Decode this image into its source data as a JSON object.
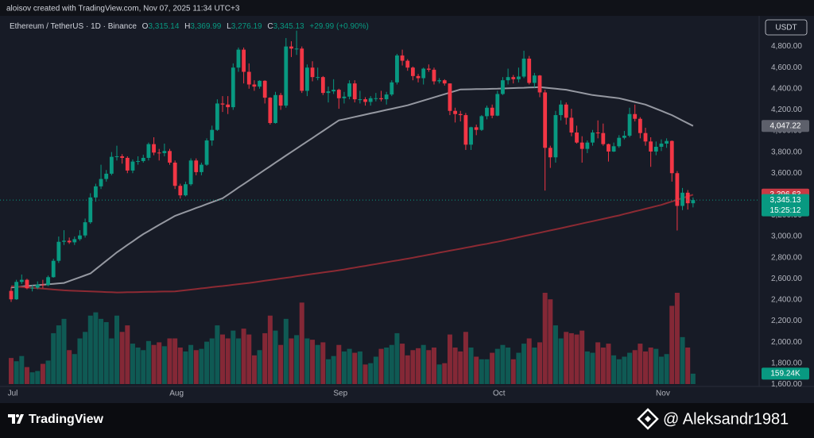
{
  "chart_data": {
    "type": "candlestick",
    "credit": "aloisov created with TradingView.com, Nov 07, 2025 11:34 UTC+3",
    "symbol": "Ethereum / TetherUS · 1D · Binance",
    "currency": "USDT",
    "quote": {
      "labels": [
        "O",
        "H",
        "L",
        "C"
      ],
      "values": [
        3315.14,
        3369.99,
        3276.19,
        3345.13
      ],
      "value_labels": [
        "3,315.14",
        "3,369.99",
        "3,276.19",
        "3,345.13"
      ],
      "change": "+29.99 (+0.90%)"
    },
    "countdown": "15:25:12",
    "footer_brand": "TradingView",
    "watermark": "@ Aleksandr1981",
    "up_color": "#089981",
    "down_color": "#f23645",
    "grid": false,
    "ylim": [
      1580,
      5090
    ],
    "yticks": [
      {
        "value": 1600,
        "label": "1,600.00"
      },
      {
        "value": 1800,
        "label": "1,800.00"
      },
      {
        "value": 2000,
        "label": "2,000.00"
      },
      {
        "value": 2200,
        "label": "2,200.00"
      },
      {
        "value": 2400,
        "label": "2,400.00"
      },
      {
        "value": 2600,
        "label": "2,600.00"
      },
      {
        "value": 2800,
        "label": "2,800.00"
      },
      {
        "value": 3000,
        "label": "3,000.00"
      },
      {
        "value": 3200,
        "label": "3,200.00"
      },
      {
        "value": 3400,
        "label": "3,400.00"
      },
      {
        "value": 3600,
        "label": "3,600.00"
      },
      {
        "value": 3800,
        "label": "3,800.00"
      },
      {
        "value": 4000,
        "label": "4,000.00"
      },
      {
        "value": 4200,
        "label": "4,200.00"
      },
      {
        "value": 4400,
        "label": "4,400.00"
      },
      {
        "value": 4600,
        "label": "4,600.00"
      },
      {
        "value": 4800,
        "label": "4,800.00"
      }
    ],
    "categories": [
      "Jul",
      null,
      null,
      null,
      null,
      null,
      null,
      null,
      null,
      null,
      null,
      null,
      null,
      null,
      null,
      null,
      null,
      null,
      null,
      null,
      null,
      null,
      null,
      null,
      null,
      null,
      null,
      null,
      null,
      null,
      null,
      "Aug",
      null,
      null,
      null,
      null,
      null,
      null,
      null,
      null,
      null,
      null,
      null,
      null,
      null,
      null,
      null,
      null,
      null,
      null,
      null,
      null,
      null,
      null,
      null,
      null,
      null,
      null,
      null,
      null,
      null,
      null,
      "Sep",
      null,
      null,
      null,
      null,
      null,
      null,
      null,
      null,
      null,
      null,
      null,
      null,
      null,
      null,
      null,
      null,
      null,
      null,
      null,
      null,
      null,
      null,
      null,
      null,
      null,
      null,
      null,
      null,
      null,
      "Oct",
      null,
      null,
      null,
      null,
      null,
      null,
      null,
      null,
      null,
      null,
      null,
      null,
      null,
      null,
      null,
      null,
      null,
      null,
      null,
      null,
      null,
      null,
      null,
      null,
      null,
      null,
      null,
      null,
      null,
      null,
      "Nov",
      null,
      null,
      null,
      null,
      null,
      null
    ],
    "open": [
      2485,
      2405,
      2570,
      2590,
      2510,
      2515,
      2545,
      2540,
      2615,
      2770,
      2950,
      2960,
      2945,
      2975,
      3010,
      3135,
      3370,
      3475,
      3545,
      3595,
      3755,
      3760,
      3745,
      3625,
      3710,
      3715,
      3745,
      3875,
      3795,
      3790,
      3810,
      3700,
      3480,
      3390,
      3495,
      3720,
      3610,
      3680,
      3910,
      4010,
      4260,
      4250,
      4225,
      4600,
      4770,
      4560,
      4440,
      4420,
      4475,
      4315,
      4075,
      4340,
      4240,
      4800,
      4780,
      4780,
      4380,
      4600,
      4510,
      4510,
      4360,
      4375,
      4390,
      4310,
      4325,
      4450,
      4300,
      4300,
      4275,
      4310,
      4310,
      4300,
      4345,
      4460,
      4715,
      4665,
      4600,
      4520,
      4500,
      4590,
      4580,
      4470,
      4480,
      4450,
      4190,
      4160,
      4150,
      3870,
      4035,
      4010,
      4140,
      4220,
      4145,
      4350,
      4480,
      4510,
      4490,
      4515,
      4685,
      4455,
      4525,
      4365,
      3840,
      3750,
      4150,
      4250,
      4125,
      3985,
      3890,
      3830,
      3890,
      3985,
      3980,
      3875,
      3805,
      3855,
      3935,
      3955,
      4160,
      4115,
      3980,
      3900,
      3805,
      3850,
      3880,
      3905,
      3600,
      3290,
      3415,
      3315.14
    ],
    "high": [
      2520,
      2590,
      2640,
      2600,
      2540,
      2575,
      2590,
      2630,
      2790,
      3000,
      3060,
      2990,
      3000,
      3060,
      3170,
      3410,
      3500,
      3680,
      3630,
      3800,
      3860,
      3780,
      3760,
      3730,
      3760,
      3775,
      3890,
      3940,
      3830,
      3880,
      3830,
      3720,
      3500,
      3520,
      3740,
      3740,
      3700,
      3930,
      4050,
      4300,
      4330,
      4330,
      4640,
      4790,
      4790,
      4640,
      4480,
      4480,
      4480,
      4320,
      4370,
      4360,
      4880,
      4850,
      4950,
      4800,
      4630,
      4660,
      4600,
      4520,
      4420,
      4490,
      4400,
      4370,
      4480,
      4480,
      4380,
      4320,
      4330,
      4360,
      4380,
      4370,
      4480,
      4730,
      4770,
      4680,
      4610,
      4540,
      4600,
      4630,
      4600,
      4500,
      4490,
      4450,
      4220,
      4190,
      4170,
      4040,
      4060,
      4150,
      4240,
      4250,
      4380,
      4510,
      4590,
      4530,
      4600,
      4760,
      4710,
      4550,
      4530,
      4390,
      3860,
      4190,
      4290,
      4270,
      4210,
      4050,
      3950,
      3910,
      4010,
      4100,
      4070,
      3880,
      3890,
      3960,
      4000,
      4220,
      4250,
      4130,
      4030,
      3940,
      3900,
      3920,
      3930,
      3910,
      3620,
      3460,
      3440,
      3369.99
    ],
    "low": [
      2380,
      2400,
      2550,
      2500,
      2480,
      2500,
      2510,
      2530,
      2610,
      2750,
      2920,
      2930,
      2920,
      2960,
      2990,
      3120,
      3330,
      3450,
      3520,
      3580,
      3720,
      3690,
      3600,
      3600,
      3680,
      3700,
      3720,
      3770,
      3720,
      3760,
      3680,
      3450,
      3360,
      3380,
      3480,
      3580,
      3580,
      3670,
      3860,
      4000,
      4180,
      4160,
      4200,
      4560,
      4450,
      4400,
      4380,
      4400,
      4260,
      4060,
      4070,
      4200,
      4220,
      4700,
      4720,
      4360,
      4330,
      4470,
      4480,
      4340,
      4270,
      4350,
      4210,
      4260,
      4300,
      4270,
      4260,
      4240,
      4240,
      4280,
      4280,
      4250,
      4330,
      4440,
      4620,
      4570,
      4480,
      4460,
      4440,
      4560,
      4440,
      4450,
      4430,
      4150,
      4080,
      4090,
      3820,
      3820,
      3960,
      4000,
      4110,
      4120,
      4140,
      4340,
      4440,
      4450,
      4460,
      4500,
      4440,
      4410,
      4320,
      3435,
      3650,
      3700,
      4100,
      4060,
      3950,
      3880,
      3700,
      3790,
      3860,
      3930,
      3860,
      3710,
      3800,
      3840,
      3920,
      3940,
      4090,
      3930,
      3860,
      3660,
      3770,
      3810,
      3840,
      3520,
      3057,
      3250,
      3255,
      3276.19
    ],
    "close": [
      2405,
      2570,
      2590,
      2510,
      2515,
      2545,
      2540,
      2615,
      2770,
      2950,
      2960,
      2945,
      2975,
      3010,
      3135,
      3370,
      3475,
      3545,
      3595,
      3755,
      3760,
      3745,
      3625,
      3710,
      3715,
      3745,
      3875,
      3795,
      3790,
      3810,
      3700,
      3480,
      3390,
      3495,
      3720,
      3610,
      3680,
      3910,
      4010,
      4260,
      4250,
      4225,
      4600,
      4770,
      4560,
      4440,
      4420,
      4475,
      4315,
      4075,
      4340,
      4240,
      4800,
      4780,
      4780,
      4380,
      4600,
      4510,
      4510,
      4360,
      4375,
      4390,
      4310,
      4325,
      4450,
      4300,
      4300,
      4275,
      4310,
      4310,
      4300,
      4345,
      4460,
      4715,
      4665,
      4600,
      4520,
      4500,
      4590,
      4580,
      4470,
      4480,
      4450,
      4190,
      4160,
      4150,
      3870,
      4035,
      4010,
      4140,
      4220,
      4145,
      4350,
      4480,
      4510,
      4490,
      4515,
      4685,
      4455,
      4525,
      4365,
      3840,
      3750,
      4150,
      4250,
      4125,
      3985,
      3890,
      3830,
      3890,
      3985,
      3980,
      3875,
      3805,
      3855,
      3935,
      3955,
      4160,
      4115,
      3980,
      3900,
      3805,
      3850,
      3880,
      3905,
      3600,
      3290,
      3415,
      3315.14,
      3345.13
    ],
    "volume": [
      400000,
      350000,
      430000,
      260000,
      180000,
      200000,
      310000,
      360000,
      780000,
      900000,
      1000000,
      520000,
      460000,
      700000,
      800000,
      1050000,
      1100000,
      1000000,
      950000,
      700000,
      1050000,
      800000,
      900000,
      620000,
      560000,
      520000,
      660000,
      600000,
      640000,
      580000,
      700000,
      700000,
      560000,
      500000,
      600000,
      520000,
      540000,
      650000,
      700000,
      900000,
      760000,
      700000,
      820000,
      700000,
      850000,
      760000,
      440000,
      520000,
      780000,
      1050000,
      820000,
      600000,
      1000000,
      700000,
      750000,
      1250000,
      700000,
      680000,
      600000,
      640000,
      380000,
      430000,
      600000,
      500000,
      540000,
      480000,
      500000,
      300000,
      320000,
      420000,
      540000,
      560000,
      600000,
      780000,
      620000,
      440000,
      520000,
      550000,
      600000,
      520000,
      560000,
      300000,
      320000,
      760000,
      560000,
      500000,
      800000,
      560000,
      420000,
      380000,
      380000,
      480000,
      540000,
      600000,
      560000,
      380000,
      480000,
      620000,
      700000,
      560000,
      640000,
      1400000,
      1300000,
      900000,
      700000,
      800000,
      780000,
      760000,
      820000,
      500000,
      480000,
      640000,
      560000,
      620000,
      440000,
      380000,
      420000,
      480000,
      520000,
      620000,
      500000,
      560000,
      540000,
      420000,
      460000,
      1200000,
      1400000,
      720000,
      560000,
      159240
    ],
    "volume_last_label": "159.24K",
    "ma_lines": [
      {
        "color": "#9598a1",
        "last_value_label": "4,047.22",
        "values": [
          2518,
          2522,
          2526,
          2531,
          2535,
          2539,
          2543,
          2547,
          2552,
          2556,
          2560,
          2578,
          2596,
          2614,
          2632,
          2650,
          2690,
          2730,
          2770,
          2810,
          2850,
          2885,
          2920,
          2954,
          2989,
          3023,
          3052,
          3081,
          3110,
          3139,
          3167,
          3196,
          3214,
          3233,
          3251,
          3270,
          3288,
          3307,
          3325,
          3344,
          3362,
          3396,
          3430,
          3464,
          3497,
          3531,
          3565,
          3599,
          3633,
          3666,
          3700,
          3733,
          3767,
          3800,
          3833,
          3867,
          3900,
          3933,
          3967,
          4000,
          4033,
          4067,
          4100,
          4111,
          4122,
          4133,
          4144,
          4155,
          4166,
          4177,
          4188,
          4199,
          4210,
          4221,
          4232,
          4243,
          4258,
          4273,
          4288,
          4303,
          4318,
          4333,
          4348,
          4363,
          4378,
          4393,
          4394,
          4395,
          4396,
          4397,
          4398,
          4399,
          4400,
          4402,
          4404,
          4406,
          4408,
          4409,
          4411,
          4413,
          4415,
          4410,
          4405,
          4400,
          4395,
          4390,
          4380,
          4370,
          4360,
          4350,
          4340,
          4334,
          4328,
          4322,
          4316,
          4310,
          4298,
          4286,
          4274,
          4262,
          4250,
          4230,
          4210,
          4190,
          4170,
          4150,
          4124,
          4098,
          4073,
          4047.22
        ]
      },
      {
        "color": "#8c2a33",
        "last_value_label": "3,396.63",
        "values": [
          2530,
          2526,
          2522,
          2518,
          2514,
          2510,
          2506,
          2502,
          2498,
          2494,
          2490,
          2488,
          2486,
          2484,
          2482,
          2480,
          2478,
          2476,
          2474,
          2472,
          2470,
          2471,
          2472,
          2473,
          2474,
          2475,
          2476,
          2477,
          2478,
          2479,
          2479,
          2480,
          2486,
          2491,
          2497,
          2503,
          2509,
          2514,
          2520,
          2526,
          2531,
          2537,
          2543,
          2549,
          2554,
          2560,
          2567,
          2574,
          2581,
          2588,
          2595,
          2602,
          2609,
          2616,
          2624,
          2631,
          2638,
          2645,
          2652,
          2659,
          2666,
          2673,
          2680,
          2688,
          2697,
          2705,
          2714,
          2722,
          2731,
          2739,
          2748,
          2756,
          2765,
          2773,
          2782,
          2790,
          2799,
          2809,
          2818,
          2828,
          2837,
          2847,
          2856,
          2866,
          2875,
          2884,
          2894,
          2903,
          2913,
          2922,
          2931,
          2941,
          2950,
          2961,
          2972,
          2982,
          2993,
          3004,
          3015,
          3025,
          3036,
          3047,
          3058,
          3068,
          3079,
          3090,
          3101,
          3112,
          3123,
          3134,
          3145,
          3156,
          3167,
          3178,
          3189,
          3200,
          3213,
          3225,
          3238,
          3250,
          3263,
          3275,
          3288,
          3300,
          3316,
          3332,
          3348,
          3364,
          3380,
          3396.63
        ]
      }
    ]
  }
}
